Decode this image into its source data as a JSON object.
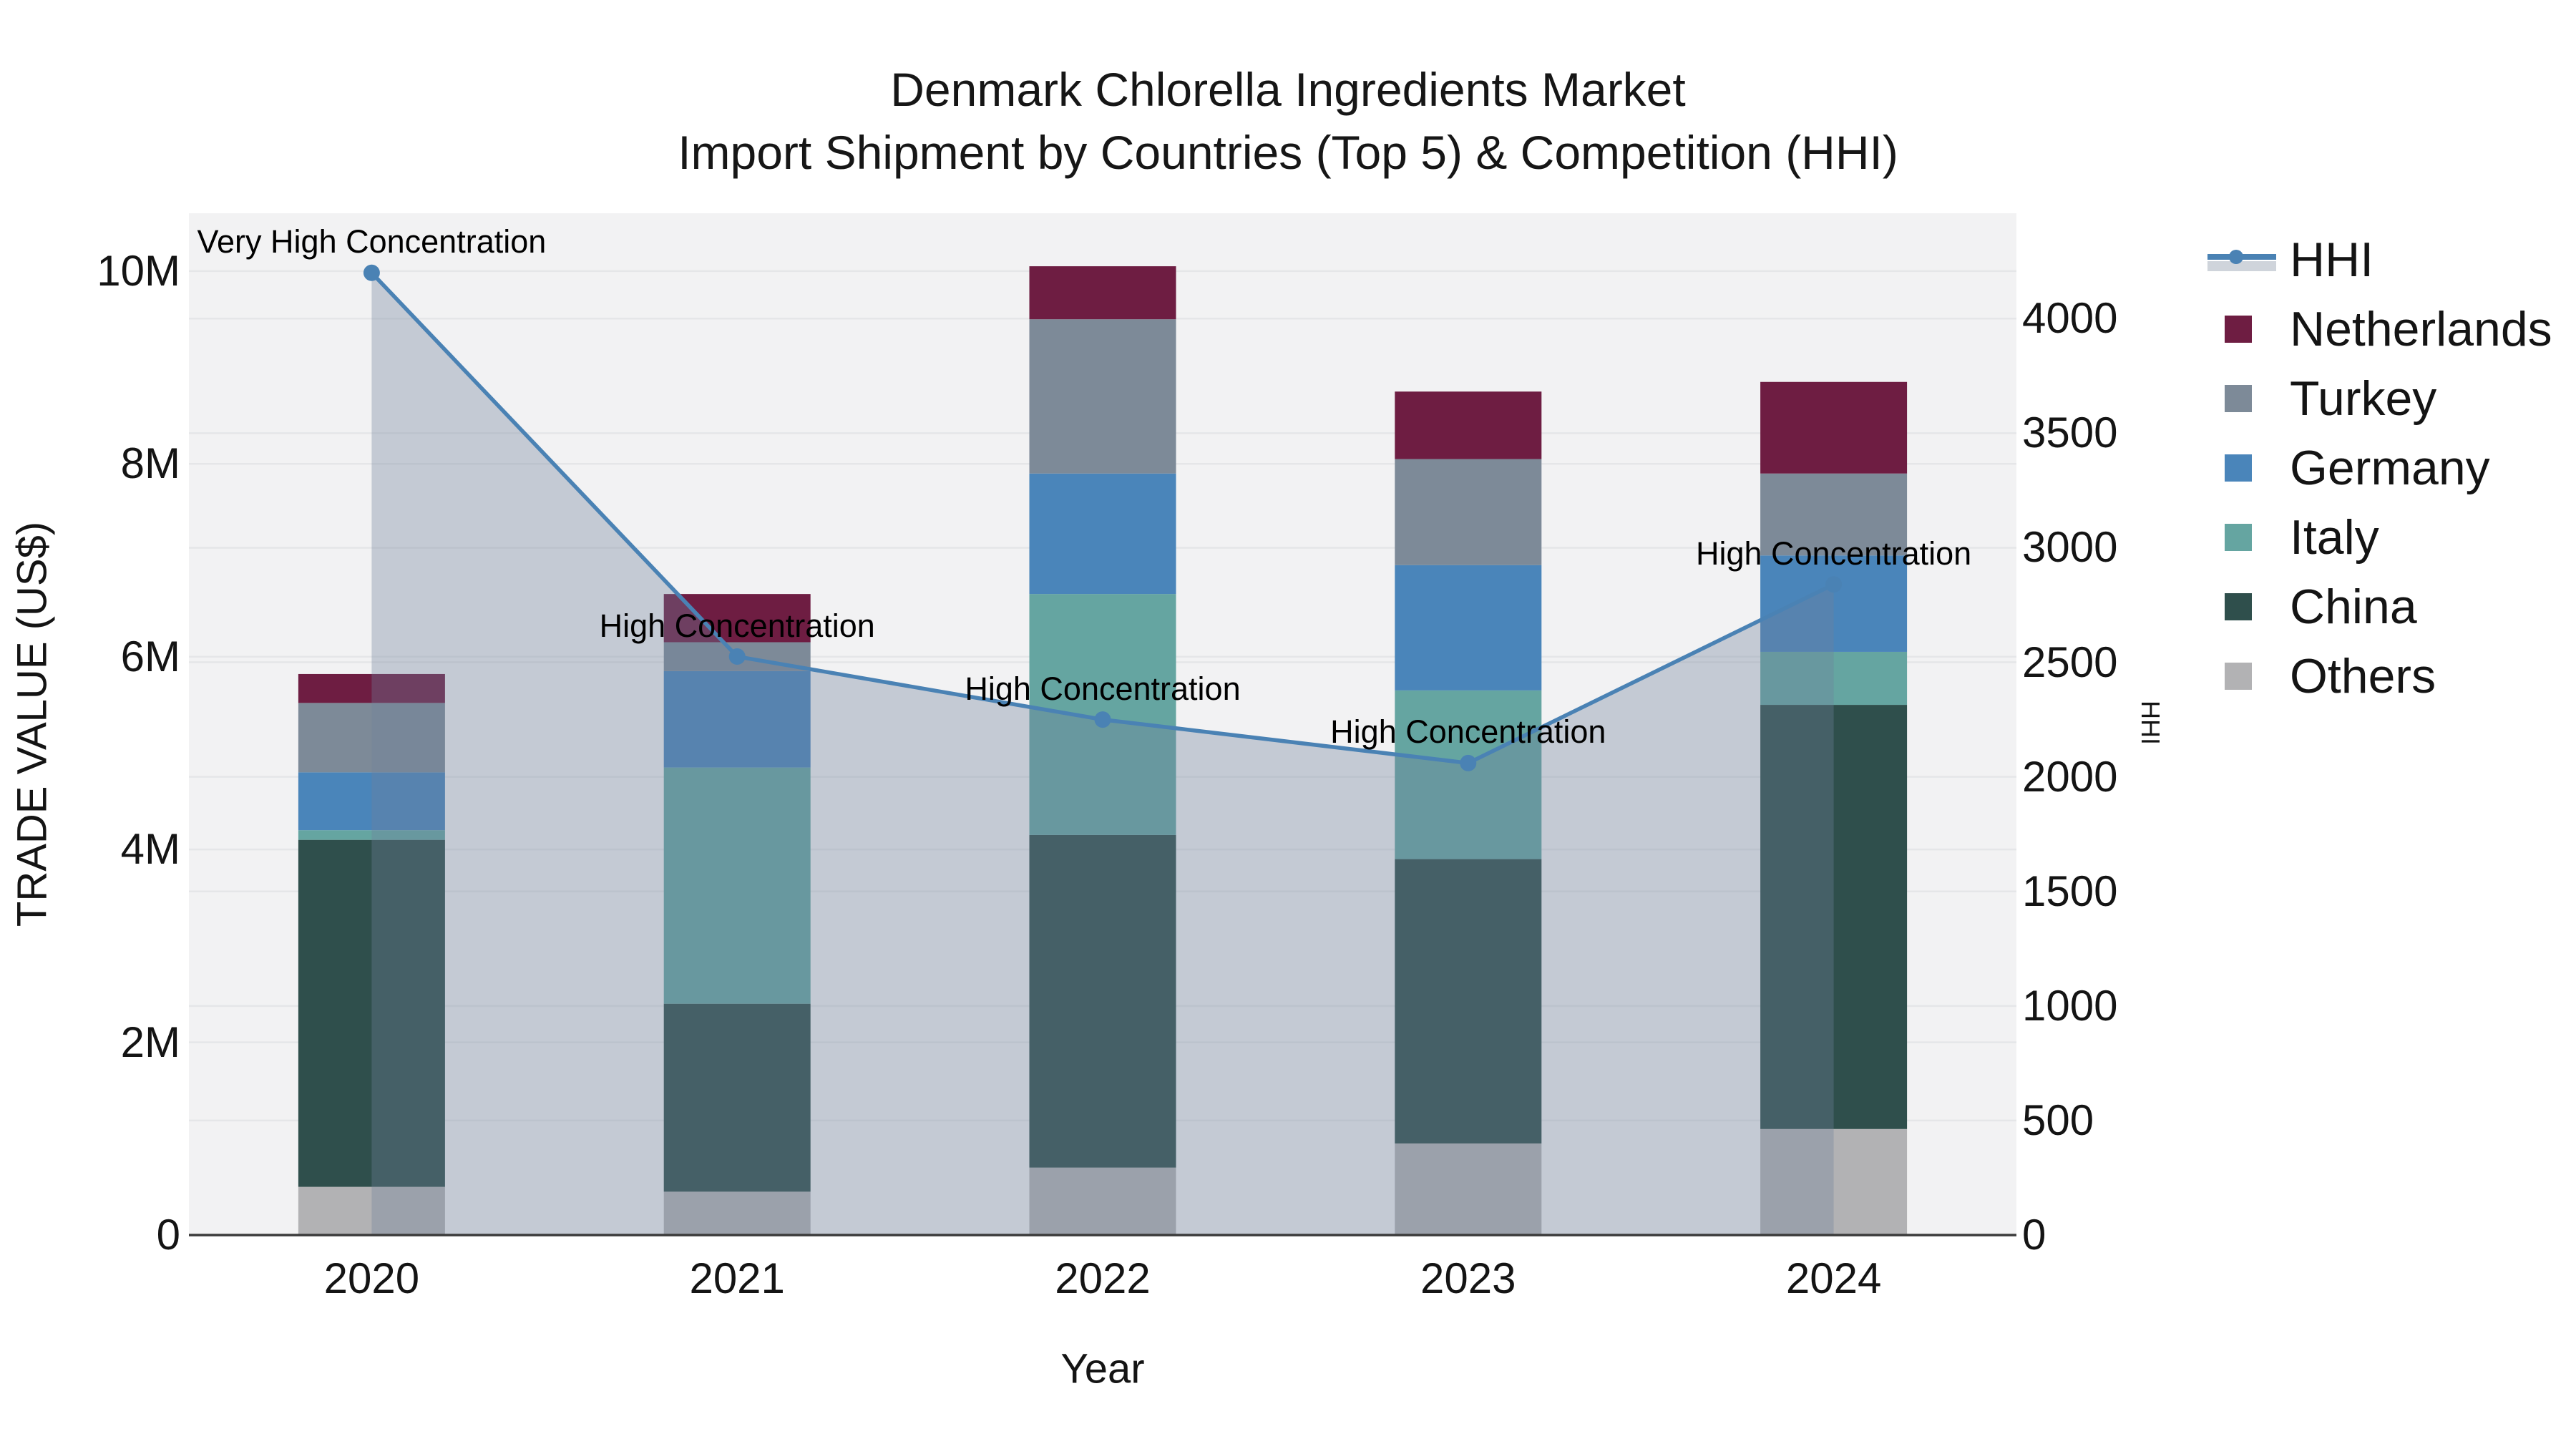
{
  "chart_data": {
    "type": "combo-stacked-bar-line",
    "title_lines": [
      "Denmark Chlorella Ingredients Market",
      "Import Shipment by Countries (Top 5) & Competition (HHI)"
    ],
    "categories": [
      "2020",
      "2021",
      "2022",
      "2023",
      "2024"
    ],
    "x_axis": {
      "label": "Year"
    },
    "y_left": {
      "label": "TRADE VALUE (US$)",
      "tick_values": [
        0,
        2000000,
        4000000,
        6000000,
        8000000,
        10000000
      ],
      "tick_labels": [
        "0",
        "2M",
        "4M",
        "6M",
        "8M",
        "10M"
      ],
      "range": [
        0,
        10600000
      ]
    },
    "y_right": {
      "label": "HHI",
      "tick_values": [
        0,
        500,
        1000,
        1500,
        2000,
        2500,
        3000,
        3500,
        4000
      ],
      "tick_labels": [
        "0",
        "500",
        "1000",
        "1500",
        "2000",
        "2500",
        "3000",
        "3500",
        "4000"
      ],
      "range": [
        0,
        4460
      ]
    },
    "bar_series": [
      {
        "name": "Others",
        "color": "#b2b2b4",
        "values": [
          500000,
          450000,
          700000,
          950000,
          1100000
        ]
      },
      {
        "name": "China",
        "color": "#2f4f4c",
        "values": [
          3600000,
          1950000,
          3450000,
          2950000,
          4400000
        ]
      },
      {
        "name": "Italy",
        "color": "#65a5a1",
        "values": [
          100000,
          2450000,
          2500000,
          1750000,
          550000
        ]
      },
      {
        "name": "Germany",
        "color": "#4a85ba",
        "values": [
          600000,
          1000000,
          1250000,
          1300000,
          1000000
        ]
      },
      {
        "name": "Turkey",
        "color": "#7d8a98",
        "values": [
          720000,
          300000,
          1600000,
          1100000,
          850000
        ]
      },
      {
        "name": "Netherlands",
        "color": "#6e1d42",
        "values": [
          300000,
          500000,
          550000,
          700000,
          950000
        ]
      }
    ],
    "line_series": {
      "name": "HHI",
      "color": "#4a82b4",
      "fill_color": "rgba(113,130,156,0.35)",
      "values": [
        4200,
        2525,
        2250,
        2060,
        2840
      ]
    },
    "annotations": [
      {
        "category": "2020",
        "text": "Very High Concentration"
      },
      {
        "category": "2021",
        "text": "High Concentration"
      },
      {
        "category": "2022",
        "text": "High Concentration"
      },
      {
        "category": "2023",
        "text": "High Concentration"
      },
      {
        "category": "2024",
        "text": "High Concentration"
      }
    ],
    "legend": [
      {
        "label": "HHI",
        "type": "line",
        "color": "#4a82b4"
      },
      {
        "label": "Netherlands",
        "type": "swatch",
        "color": "#6e1d42"
      },
      {
        "label": "Turkey",
        "type": "swatch",
        "color": "#7d8a98"
      },
      {
        "label": "Germany",
        "type": "swatch",
        "color": "#4a85ba"
      },
      {
        "label": "Italy",
        "type": "swatch",
        "color": "#65a5a1"
      },
      {
        "label": "China",
        "type": "swatch",
        "color": "#2f4f4c"
      },
      {
        "label": "Others",
        "type": "swatch",
        "color": "#b2b2b4"
      }
    ],
    "grid": true,
    "legend_position": "right"
  },
  "styles": {
    "plot_bg": "#f2f2f3",
    "grid_color": "#e5e6e8",
    "axis_line_color": "#3b3b3b",
    "legend_band_color": "#cfd4db",
    "text_color": "#141414"
  }
}
